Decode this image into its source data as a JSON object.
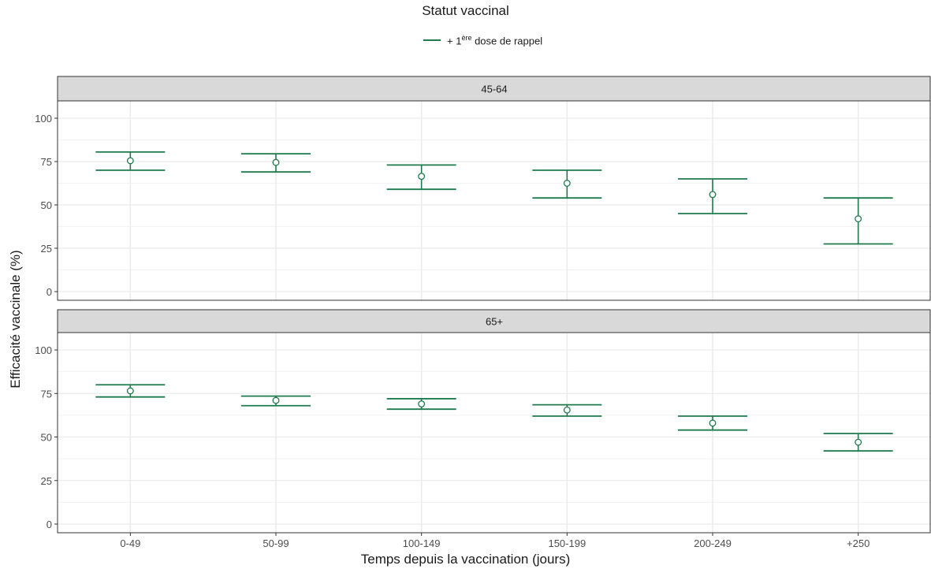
{
  "legend": {
    "title": "Statut vaccinal",
    "label_prefix": "+ 1",
    "label_sup": "ère",
    "label_suffix": " dose de rappel",
    "color": "#1f7a4d"
  },
  "axes": {
    "ylabel": "Efficacité vaccinale (%)",
    "xlabel": "Temps depuis la vaccination (jours)"
  },
  "chart_data": {
    "type": "scatter",
    "subtype": "point-with-errorbars",
    "categories": [
      "0-49",
      "50-99",
      "100-149",
      "150-199",
      "200-249",
      "+250"
    ],
    "ylim": [
      0,
      105
    ],
    "yticks": [
      0,
      25,
      50,
      75,
      100
    ],
    "grid": true,
    "legend_position": "top",
    "color": "#1f7a4d",
    "panels": [
      {
        "label": "45-64",
        "series": [
          {
            "name": "+ 1ère dose de rappel",
            "values": [
              75.5,
              74.5,
              66.5,
              62.5,
              56,
              42
            ],
            "lower": [
              70,
              69,
              59,
              54,
              45,
              27.5
            ],
            "upper": [
              80.5,
              79.5,
              73,
              70,
              65,
              54
            ]
          }
        ]
      },
      {
        "label": "65+",
        "series": [
          {
            "name": "+ 1ère dose de rappel",
            "values": [
              76.5,
              71,
              69,
              65.5,
              58,
              47
            ],
            "lower": [
              73,
              68,
              66,
              62,
              54,
              42
            ],
            "upper": [
              80,
              73.5,
              72,
              68.5,
              62,
              52
            ]
          }
        ]
      }
    ]
  }
}
